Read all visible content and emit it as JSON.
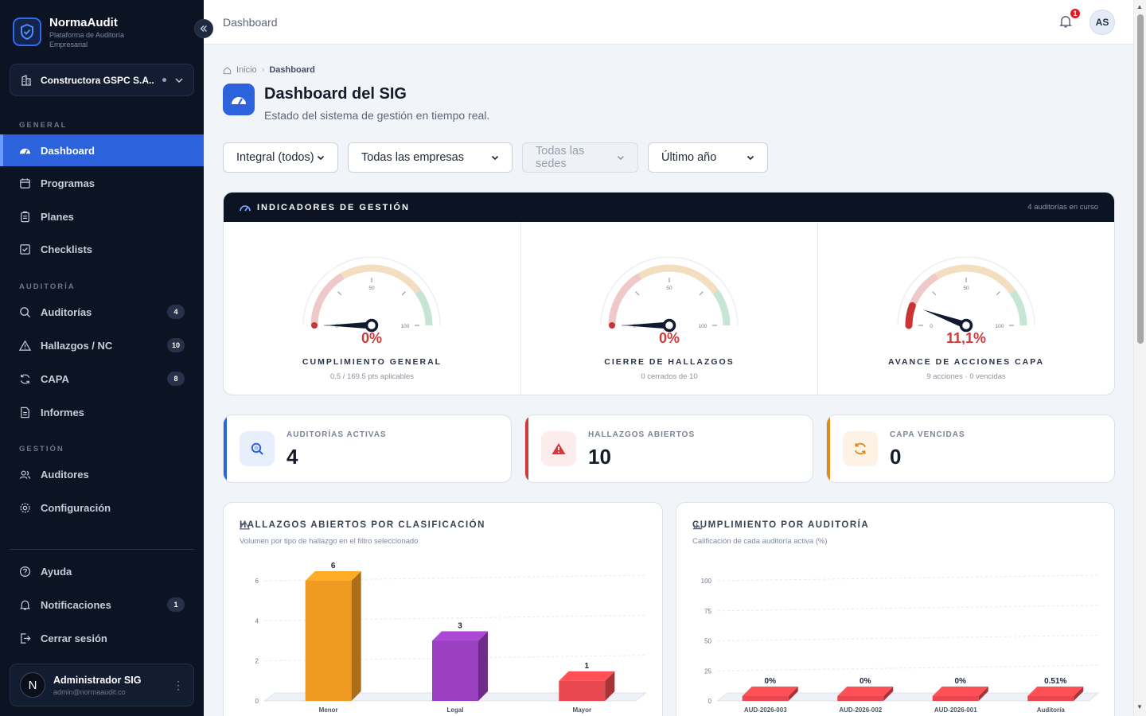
{
  "brand": {
    "name": "NormaAudit",
    "subtitle": "Plataforma de Auditoría Empresarial"
  },
  "company_selector": {
    "name": "Constructora GSPC S.A..."
  },
  "sidebar": {
    "sections": {
      "general": "GENERAL",
      "auditoria": "AUDITORÍA",
      "gestion": "GESTIÓN"
    },
    "items": [
      {
        "label": "Dashboard",
        "icon": "dashboard-gauge-icon"
      },
      {
        "label": "Programas",
        "icon": "calendar-icon"
      },
      {
        "label": "Planes",
        "icon": "clipboard-icon"
      },
      {
        "label": "Checklists",
        "icon": "checkbox-icon"
      },
      {
        "label": "Auditorías",
        "icon": "search-icon",
        "count": "4"
      },
      {
        "label": "Hallazgos / NC",
        "icon": "warning-icon",
        "count": "10"
      },
      {
        "label": "CAPA",
        "icon": "refresh-icon",
        "count": "8"
      },
      {
        "label": "Informes",
        "icon": "document-icon"
      },
      {
        "label": "Auditores",
        "icon": "users-icon"
      },
      {
        "label": "Configuración",
        "icon": "gear-icon"
      }
    ],
    "footer_items": [
      {
        "label": "Ayuda",
        "icon": "help-icon"
      },
      {
        "label": "Notificaciones",
        "icon": "bell-icon",
        "count": "1"
      },
      {
        "label": "Cerrar sesión",
        "icon": "logout-icon"
      }
    ],
    "user": {
      "initial": "N",
      "name": "Administrador SIG",
      "email": "admin@normaaudit.co"
    }
  },
  "topbar": {
    "title": "Dashboard",
    "notifications": "1",
    "avatar": "AS"
  },
  "breadcrumb": {
    "home": "Inicio",
    "current": "Dashboard"
  },
  "page": {
    "title": "Dashboard del SIG",
    "subtitle": "Estado del sistema de gestión en tiempo real."
  },
  "filters": [
    {
      "value": "Integral (todos)"
    },
    {
      "value": "Todas las empresas"
    },
    {
      "value": "Todas las sedes",
      "disabled": true
    },
    {
      "value": "Último año"
    }
  ],
  "indicators": {
    "header": "INDICADORES DE GESTIÓN",
    "right_note": "4 auditorías en curso",
    "gauges": [
      {
        "value": "0%",
        "percent": 0,
        "label": "CUMPLIMIENTO GENERAL",
        "sub": "0.5 / 169.5 pts aplicables"
      },
      {
        "value": "0%",
        "percent": 0,
        "label": "CIERRE DE HALLAZGOS",
        "sub": "0 cerrados de 10"
      },
      {
        "value": "11,1%",
        "percent": 11.1,
        "label": "AVANCE DE ACCIONES CAPA",
        "sub": "9 acciones · 0 vencidas"
      }
    ],
    "gauge_ticks": {
      "min": "0",
      "mid": "50",
      "max": "100"
    }
  },
  "kpis": [
    {
      "label": "AUDITORÍAS ACTIVAS",
      "value": "4",
      "color": "#2c63dc",
      "icon": "search-icon"
    },
    {
      "label": "HALLAZGOS ABIERTOS",
      "value": "10",
      "color": "#d03a3a",
      "icon": "warning-icon"
    },
    {
      "label": "CAPA VENCIDAS",
      "value": "0",
      "color": "#e08a1e",
      "icon": "refresh-icon"
    }
  ],
  "chart_data": [
    {
      "type": "bar",
      "title": "HALLAZGOS ABIERTOS POR CLASIFICACIÓN",
      "subtitle": "Volumen por tipo de hallazgo en el filtro seleccionado",
      "categories": [
        "Menor",
        "Legal",
        "Mayor"
      ],
      "values": [
        6,
        3,
        1
      ],
      "value_labels": [
        "6",
        "3",
        "1"
      ],
      "colors": [
        "#ef9a22",
        "#9a3fbf",
        "#e8474f"
      ],
      "ylim": [
        0,
        6
      ],
      "yticks": [
        "0",
        "2",
        "4",
        "6"
      ],
      "grid": true
    },
    {
      "type": "bar",
      "title": "CUMPLIMIENTO POR AUDITORÍA",
      "subtitle": "Calificación de cada auditoría activa (%)",
      "categories": [
        "AUD-2026-003",
        "AUD-2026-002",
        "AUD-2026-001",
        "Auditoría"
      ],
      "values": [
        0,
        0,
        0,
        0.51
      ],
      "value_labels": [
        "0%",
        "0%",
        "0%",
        "0.51%"
      ],
      "ylim": [
        0,
        100
      ],
      "yticks": [
        "0",
        "25",
        "50",
        "75",
        "100"
      ],
      "grid": true
    }
  ]
}
